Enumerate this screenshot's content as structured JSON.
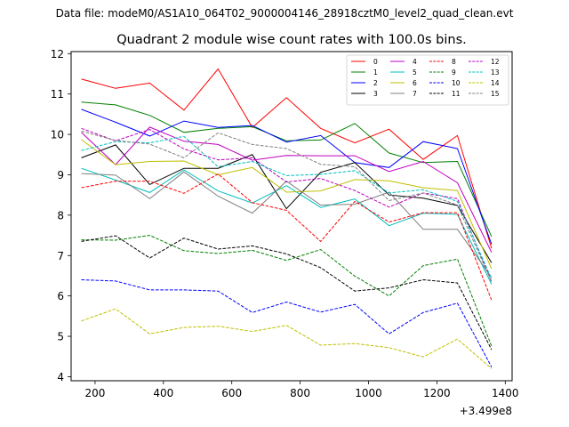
{
  "chart_data": {
    "type": "line",
    "suptitle": "Data file: modeM0/AS1A10_064T02_9000004146_28918cztM0_level2_quad_clean.evt",
    "title": "Quadrant 2 module wise count rates with 100.0s bins.",
    "xlabel": "",
    "ylabel": "",
    "x_offset_label": "+3.499e8",
    "xlim": [
      130,
      1420
    ],
    "ylim": [
      3.9,
      12.05
    ],
    "xticks": [
      200,
      400,
      600,
      800,
      1000,
      1200,
      1400
    ],
    "yticks": [
      4,
      5,
      6,
      7,
      8,
      9,
      10,
      11,
      12
    ],
    "legend_position": "top-right",
    "x": [
      160,
      260,
      360,
      460,
      560,
      660,
      760,
      860,
      960,
      1060,
      1160,
      1260,
      1360
    ],
    "series": [
      {
        "name": "0",
        "color": "#ff0000",
        "dashed": false,
        "values": [
          11.37,
          11.14,
          11.27,
          10.6,
          11.62,
          10.17,
          10.91,
          10.15,
          9.79,
          10.13,
          9.38,
          9.97,
          7.18
        ]
      },
      {
        "name": "1",
        "color": "#008000",
        "dashed": false,
        "values": [
          10.8,
          10.73,
          10.47,
          10.05,
          10.15,
          10.19,
          9.84,
          9.86,
          10.27,
          9.54,
          9.3,
          9.33,
          7.47
        ]
      },
      {
        "name": "2",
        "color": "#0000ff",
        "dashed": false,
        "values": [
          10.62,
          10.3,
          9.96,
          10.33,
          10.17,
          10.22,
          9.81,
          9.97,
          9.3,
          9.18,
          9.82,
          9.65,
          7.28
        ]
      },
      {
        "name": "3",
        "color": "#000000",
        "dashed": false,
        "values": [
          9.42,
          9.74,
          8.76,
          9.16,
          9.16,
          9.5,
          8.16,
          9.06,
          9.3,
          8.5,
          8.42,
          8.24,
          6.82
        ]
      },
      {
        "name": "4",
        "color": "#bf00bf",
        "dashed": false,
        "values": [
          10.05,
          9.25,
          10.18,
          9.83,
          9.75,
          9.36,
          9.48,
          9.47,
          9.47,
          9.08,
          9.33,
          8.8,
          7.08
        ]
      },
      {
        "name": "5",
        "color": "#00bfbf",
        "dashed": false,
        "values": [
          9.16,
          8.87,
          8.56,
          9.12,
          8.6,
          8.3,
          8.73,
          8.19,
          8.4,
          7.74,
          8.05,
          8.02,
          6.29
        ]
      },
      {
        "name": "6",
        "color": "#bfbf00",
        "dashed": false,
        "values": [
          9.87,
          9.25,
          9.33,
          9.34,
          9.0,
          9.18,
          8.57,
          8.6,
          8.88,
          8.85,
          8.68,
          8.61,
          6.67
        ]
      },
      {
        "name": "7",
        "color": "#808080",
        "dashed": false,
        "values": [
          9.03,
          8.99,
          8.41,
          9.07,
          8.47,
          8.05,
          8.84,
          8.25,
          8.27,
          8.57,
          7.65,
          7.65,
          6.46
        ]
      },
      {
        "name": "8",
        "color": "#ff0000",
        "dashed": true,
        "values": [
          8.68,
          8.84,
          8.84,
          8.54,
          9.02,
          8.31,
          8.12,
          7.35,
          8.34,
          7.83,
          8.06,
          8.06,
          5.9
        ]
      },
      {
        "name": "9",
        "color": "#008000",
        "dashed": true,
        "values": [
          7.39,
          7.38,
          7.5,
          7.12,
          7.05,
          7.13,
          6.88,
          7.15,
          6.49,
          6.0,
          6.75,
          6.91,
          4.76
        ]
      },
      {
        "name": "10",
        "color": "#0000ff",
        "dashed": true,
        "values": [
          6.4,
          6.37,
          6.15,
          6.15,
          6.12,
          5.59,
          5.85,
          5.6,
          5.79,
          5.06,
          5.59,
          5.82,
          4.24
        ]
      },
      {
        "name": "11",
        "color": "#000000",
        "dashed": true,
        "values": [
          7.35,
          7.49,
          6.94,
          7.43,
          7.16,
          7.24,
          7.04,
          6.7,
          6.12,
          6.2,
          6.4,
          6.32,
          4.67
        ]
      },
      {
        "name": "12",
        "color": "#bf00bf",
        "dashed": true,
        "values": [
          10.15,
          9.84,
          10.12,
          9.64,
          9.37,
          9.42,
          8.82,
          8.91,
          8.61,
          8.2,
          8.55,
          8.41,
          6.35
        ]
      },
      {
        "name": "13",
        "color": "#00bfbf",
        "dashed": true,
        "values": [
          9.6,
          9.82,
          9.79,
          9.95,
          9.2,
          9.33,
          8.98,
          9.01,
          9.1,
          8.55,
          8.63,
          8.34,
          6.42
        ]
      },
      {
        "name": "14",
        "color": "#bfbf00",
        "dashed": true,
        "values": [
          5.38,
          5.68,
          5.06,
          5.22,
          5.25,
          5.12,
          5.27,
          4.78,
          4.82,
          4.72,
          4.49,
          4.93,
          4.2
        ]
      },
      {
        "name": "15",
        "color": "#808080",
        "dashed": true,
        "values": [
          10.08,
          9.85,
          9.76,
          9.42,
          10.04,
          9.75,
          9.65,
          9.26,
          9.2,
          8.36,
          8.55,
          8.25,
          6.35
        ]
      }
    ]
  }
}
